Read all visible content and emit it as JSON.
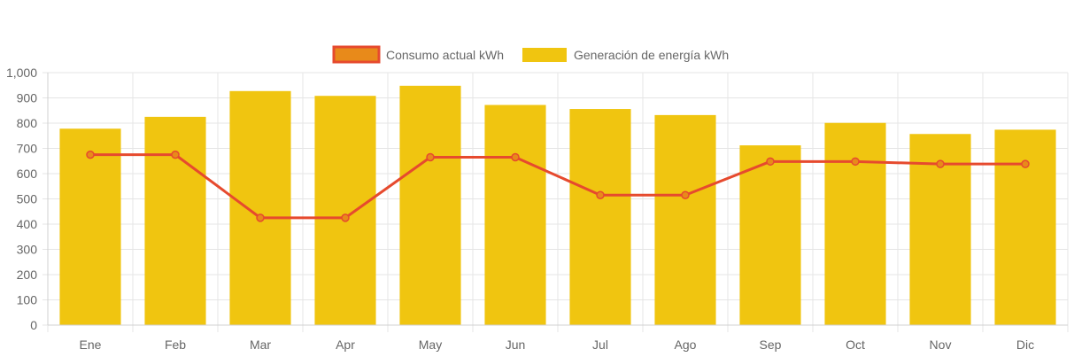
{
  "chart_data": {
    "type": "bar",
    "categories": [
      "Ene",
      "Feb",
      "Mar",
      "Apr",
      "May",
      "Jun",
      "Jul",
      "Ago",
      "Sep",
      "Oct",
      "Nov",
      "Dic"
    ],
    "series": [
      {
        "name": "Consumo actual kWh",
        "type": "line",
        "values": [
          675,
          675,
          425,
          425,
          665,
          665,
          515,
          515,
          648,
          648,
          638,
          638
        ],
        "color": "#e64a2e",
        "legend_fill": "#e88a1a"
      },
      {
        "name": "Generación de energía kWh",
        "type": "bar",
        "values": [
          778,
          825,
          927,
          908,
          948,
          872,
          856,
          832,
          712,
          801,
          757,
          774
        ],
        "color": "#f0c510"
      }
    ],
    "ylim": [
      0,
      1000
    ],
    "yticks": [
      "0",
      "100",
      "200",
      "300",
      "400",
      "500",
      "600",
      "700",
      "800",
      "900",
      "1,000"
    ],
    "title": "",
    "xlabel": "",
    "ylabel": "",
    "grid": true,
    "legend_position": "top-center"
  }
}
